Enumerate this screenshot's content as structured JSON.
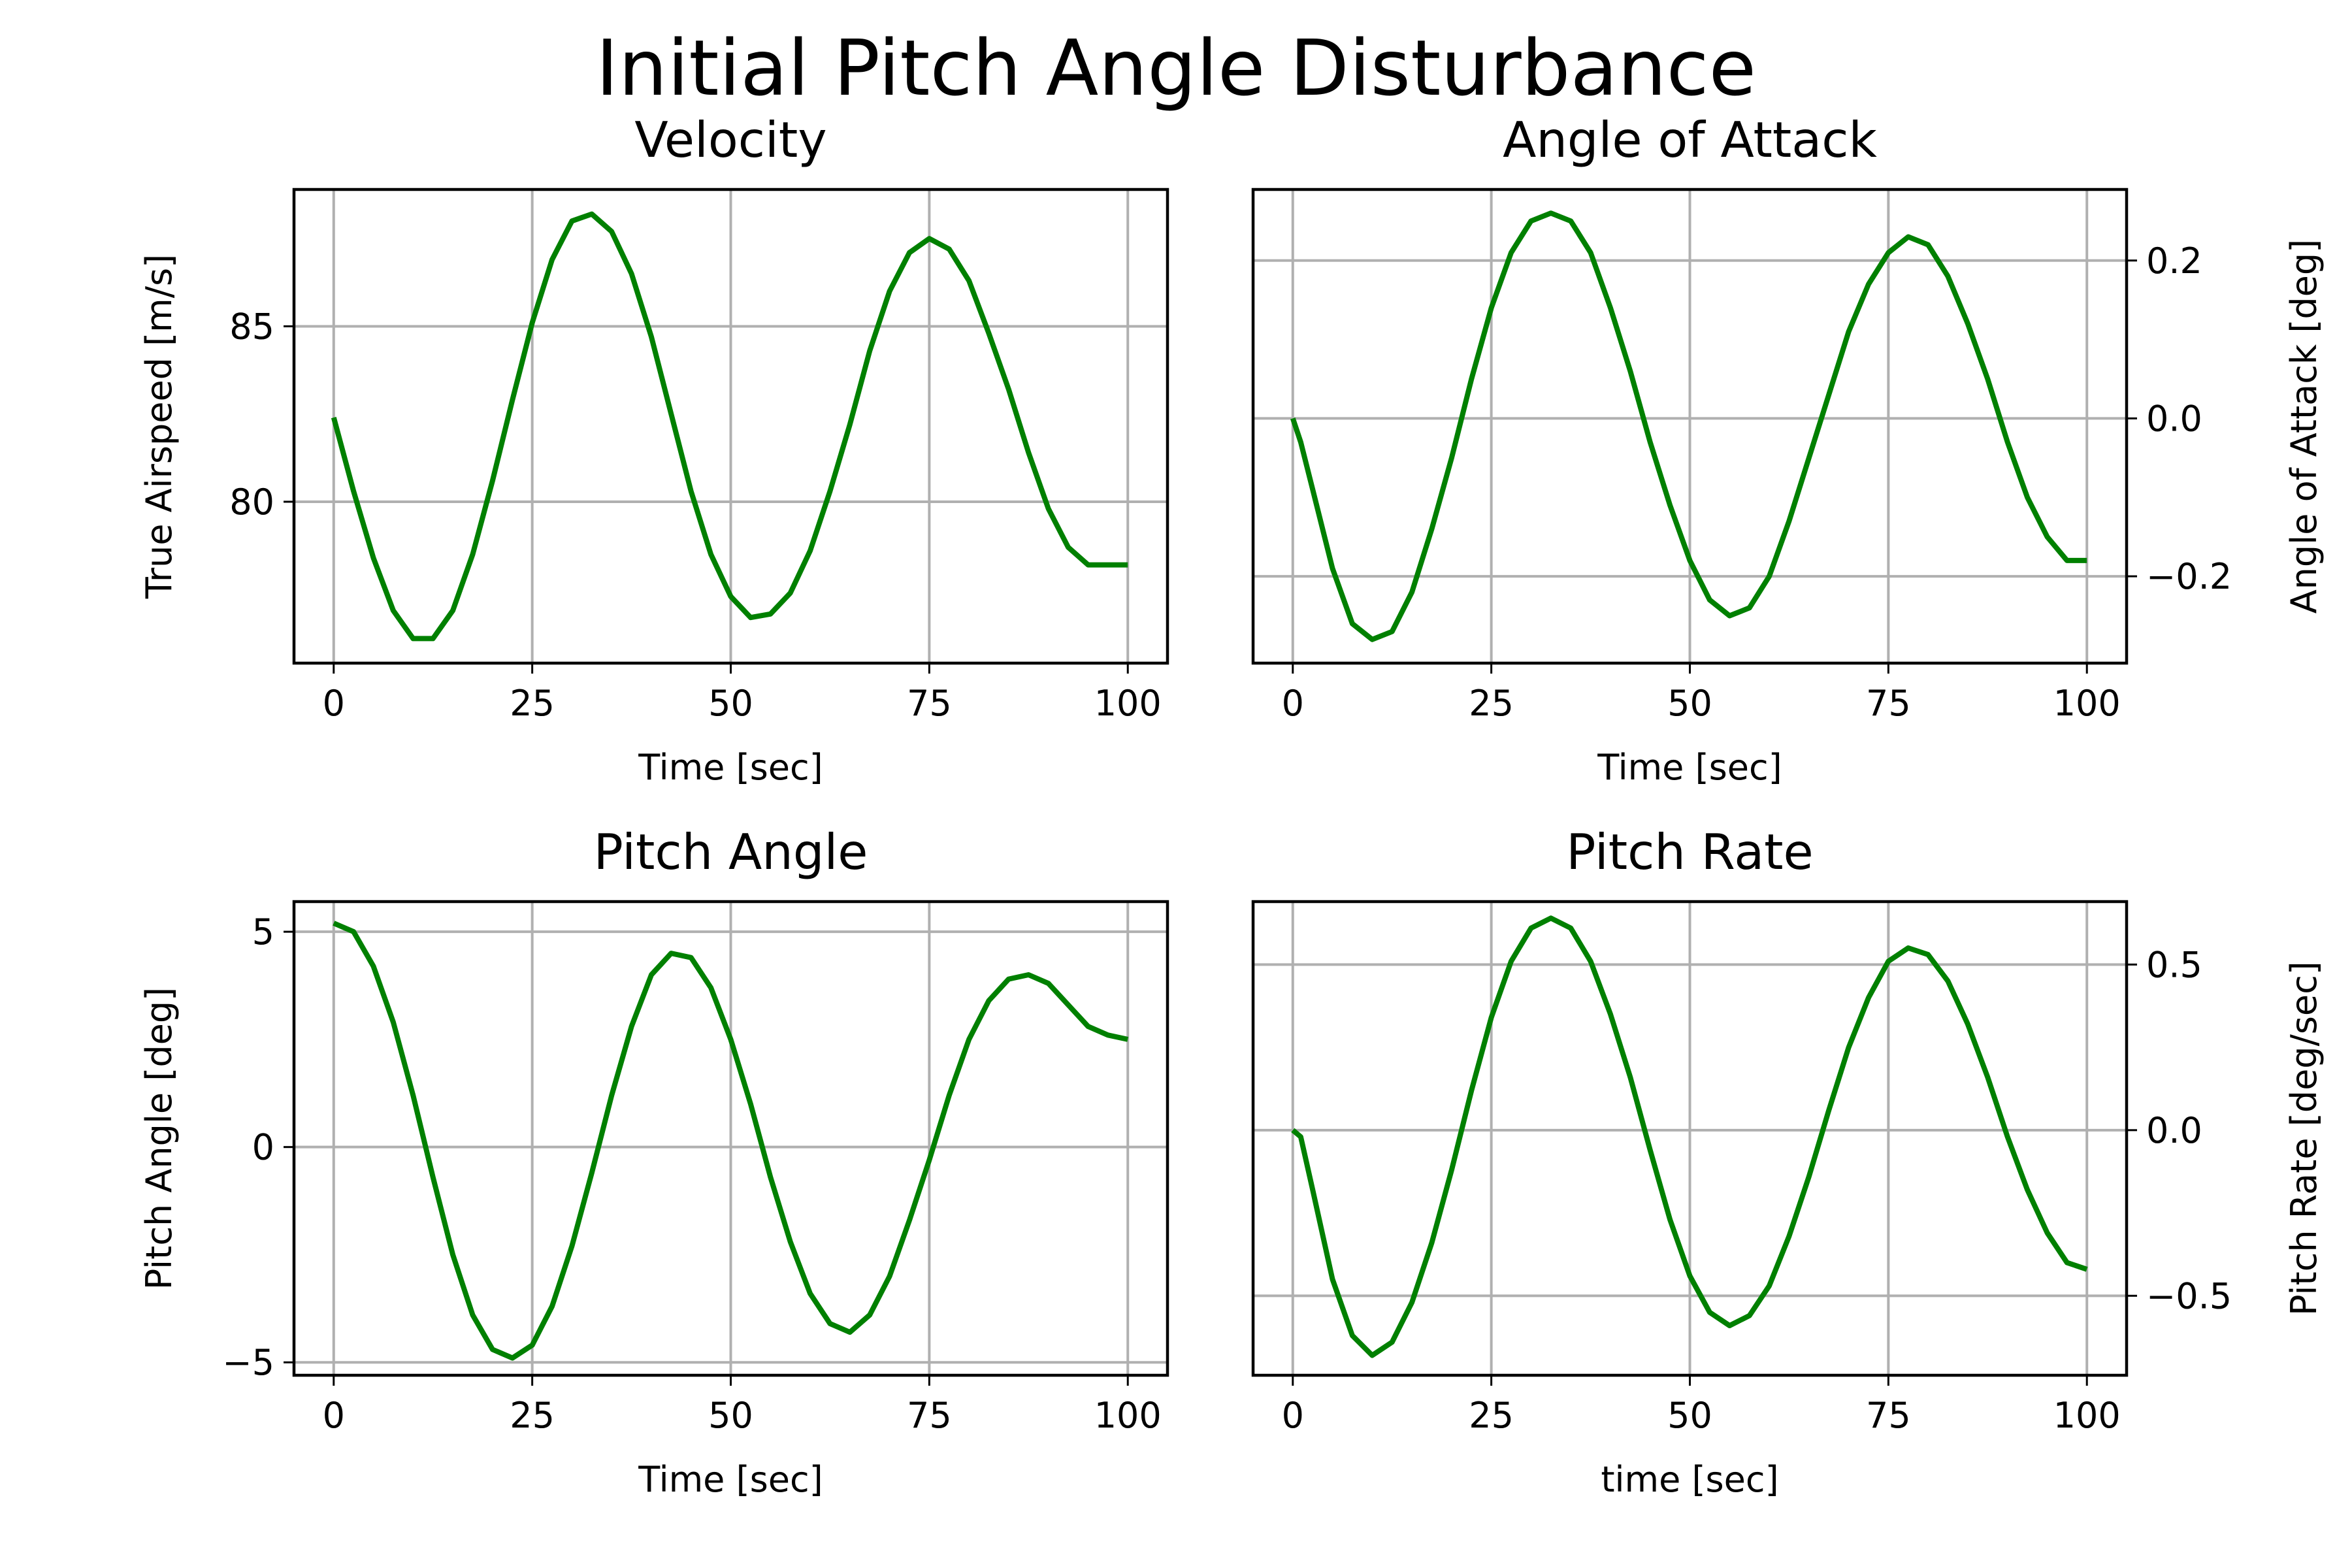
{
  "figure": {
    "title": "Initial Pitch Angle Disturbance"
  },
  "colors": {
    "line": "#008000",
    "grid": "#b0b0b0",
    "axes": "#000000",
    "background": "#ffffff"
  },
  "chart_data": [
    {
      "type": "line",
      "title": "Velocity",
      "xlabel": "Time [sec]",
      "ylabel": "True Airspeed [m/s]",
      "yaxis_side": "left",
      "xlim": [
        -5,
        105
      ],
      "ylim": [
        75.4,
        88.9
      ],
      "xticks": [
        0,
        25,
        50,
        75,
        100
      ],
      "xtick_labels": [
        "0",
        "25",
        "50",
        "75",
        "100"
      ],
      "yticks": [
        80,
        85
      ],
      "ytick_labels": [
        "80",
        "85"
      ],
      "grid": true,
      "series": [
        {
          "x": [
            0,
            2.5,
            5,
            7.5,
            10,
            12.5,
            15,
            17.5,
            20,
            22.5,
            25,
            27.5,
            30,
            32.5,
            35,
            37.5,
            40,
            42.5,
            45,
            47.5,
            50,
            52.5,
            55,
            57.5,
            60,
            62.5,
            65,
            67.5,
            70,
            72.5,
            75,
            77.5,
            80,
            82.5,
            85,
            87.5,
            90,
            92.5,
            95,
            97.5,
            100
          ],
          "y": [
            82.4,
            80.3,
            78.4,
            76.9,
            76.1,
            76.1,
            76.9,
            78.5,
            80.6,
            82.9,
            85.1,
            86.9,
            88.0,
            88.2,
            87.7,
            86.5,
            84.7,
            82.5,
            80.3,
            78.5,
            77.3,
            76.7,
            76.8,
            77.4,
            78.6,
            80.3,
            82.2,
            84.3,
            86.0,
            87.1,
            87.5,
            87.2,
            86.3,
            84.8,
            83.2,
            81.4,
            79.8,
            78.7,
            78.2,
            78.2,
            78.2
          ]
        }
      ]
    },
    {
      "type": "line",
      "title": "Angle of Attack",
      "xlabel": "Time [sec]",
      "ylabel": "Angle of Attack [deg]",
      "yaxis_side": "right",
      "xlim": [
        -5,
        105
      ],
      "ylim": [
        -0.31,
        0.29
      ],
      "xticks": [
        0,
        25,
        50,
        75,
        100
      ],
      "xtick_labels": [
        "0",
        "25",
        "50",
        "75",
        "100"
      ],
      "yticks": [
        -0.2,
        0.0,
        0.2
      ],
      "ytick_labels": [
        "−0.2",
        "0.0",
        "0.2"
      ],
      "grid": true,
      "series": [
        {
          "x": [
            0,
            1,
            2.5,
            5,
            7.5,
            10,
            12.5,
            15,
            17.5,
            20,
            22.5,
            25,
            27.5,
            30,
            32.5,
            35,
            37.5,
            40,
            42.5,
            45,
            47.5,
            50,
            52.5,
            55,
            57.5,
            60,
            62.5,
            65,
            67.5,
            70,
            72.5,
            75,
            77.5,
            80,
            82.5,
            85,
            87.5,
            90,
            92.5,
            95,
            97.5,
            100
          ],
          "y": [
            0.0,
            -0.03,
            -0.09,
            -0.19,
            -0.26,
            -0.28,
            -0.27,
            -0.22,
            -0.14,
            -0.05,
            0.05,
            0.14,
            0.21,
            0.25,
            0.26,
            0.25,
            0.21,
            0.14,
            0.06,
            -0.03,
            -0.11,
            -0.18,
            -0.23,
            -0.25,
            -0.24,
            -0.2,
            -0.13,
            -0.05,
            0.03,
            0.11,
            0.17,
            0.21,
            0.23,
            0.22,
            0.18,
            0.12,
            0.05,
            -0.03,
            -0.1,
            -0.15,
            -0.18,
            -0.18
          ]
        }
      ]
    },
    {
      "type": "line",
      "title": "Pitch Angle",
      "xlabel": "Time [sec]",
      "ylabel": "Pitch Angle [deg]",
      "yaxis_side": "left",
      "xlim": [
        -5,
        105
      ],
      "ylim": [
        -5.3,
        5.7
      ],
      "xticks": [
        0,
        25,
        50,
        75,
        100
      ],
      "xtick_labels": [
        "0",
        "25",
        "50",
        "75",
        "100"
      ],
      "yticks": [
        -5,
        0,
        5
      ],
      "ytick_labels": [
        "−5",
        "0",
        "5"
      ],
      "grid": true,
      "series": [
        {
          "x": [
            0,
            2.5,
            5,
            7.5,
            10,
            12.5,
            15,
            17.5,
            20,
            22.5,
            25,
            27.5,
            30,
            32.5,
            35,
            37.5,
            40,
            42.5,
            45,
            47.5,
            50,
            52.5,
            55,
            57.5,
            60,
            62.5,
            65,
            67.5,
            70,
            72.5,
            75,
            77.5,
            80,
            82.5,
            85,
            87.5,
            90,
            92.5,
            95,
            97.5,
            100
          ],
          "y": [
            5.2,
            5.0,
            4.2,
            2.9,
            1.2,
            -0.7,
            -2.5,
            -3.9,
            -4.7,
            -4.9,
            -4.6,
            -3.7,
            -2.3,
            -0.6,
            1.2,
            2.8,
            4.0,
            4.5,
            4.4,
            3.7,
            2.5,
            1.0,
            -0.7,
            -2.2,
            -3.4,
            -4.1,
            -4.3,
            -3.9,
            -3.0,
            -1.7,
            -0.3,
            1.2,
            2.5,
            3.4,
            3.9,
            4.0,
            3.8,
            3.3,
            2.8,
            2.6,
            2.5
          ]
        }
      ]
    },
    {
      "type": "line",
      "title": "Pitch Rate",
      "xlabel": "time [sec]",
      "ylabel": "Pitch Rate [deg/sec]",
      "yaxis_side": "right",
      "xlim": [
        -5,
        105
      ],
      "ylim": [
        -0.74,
        0.69
      ],
      "xticks": [
        0,
        25,
        50,
        75,
        100
      ],
      "xtick_labels": [
        "0",
        "25",
        "50",
        "75",
        "100"
      ],
      "yticks": [
        -0.5,
        0.0,
        0.5
      ],
      "ytick_labels": [
        "−0.5",
        "0.0",
        "0.5"
      ],
      "grid": true,
      "series": [
        {
          "x": [
            0,
            1,
            2.5,
            5,
            7.5,
            10,
            12.5,
            15,
            17.5,
            20,
            22.5,
            25,
            27.5,
            30,
            32.5,
            35,
            37.5,
            40,
            42.5,
            45,
            47.5,
            50,
            52.5,
            55,
            57.5,
            60,
            62.5,
            65,
            67.5,
            70,
            72.5,
            75,
            77.5,
            80,
            82.5,
            85,
            87.5,
            90,
            92.5,
            95,
            97.5,
            100
          ],
          "y": [
            0.0,
            -0.02,
            -0.18,
            -0.45,
            -0.62,
            -0.68,
            -0.64,
            -0.52,
            -0.34,
            -0.12,
            0.12,
            0.34,
            0.51,
            0.61,
            0.64,
            0.61,
            0.51,
            0.35,
            0.16,
            -0.06,
            -0.27,
            -0.44,
            -0.55,
            -0.59,
            -0.56,
            -0.47,
            -0.32,
            -0.14,
            0.06,
            0.25,
            0.4,
            0.51,
            0.55,
            0.53,
            0.45,
            0.32,
            0.16,
            -0.02,
            -0.18,
            -0.31,
            -0.4,
            -0.42
          ]
        }
      ]
    }
  ]
}
